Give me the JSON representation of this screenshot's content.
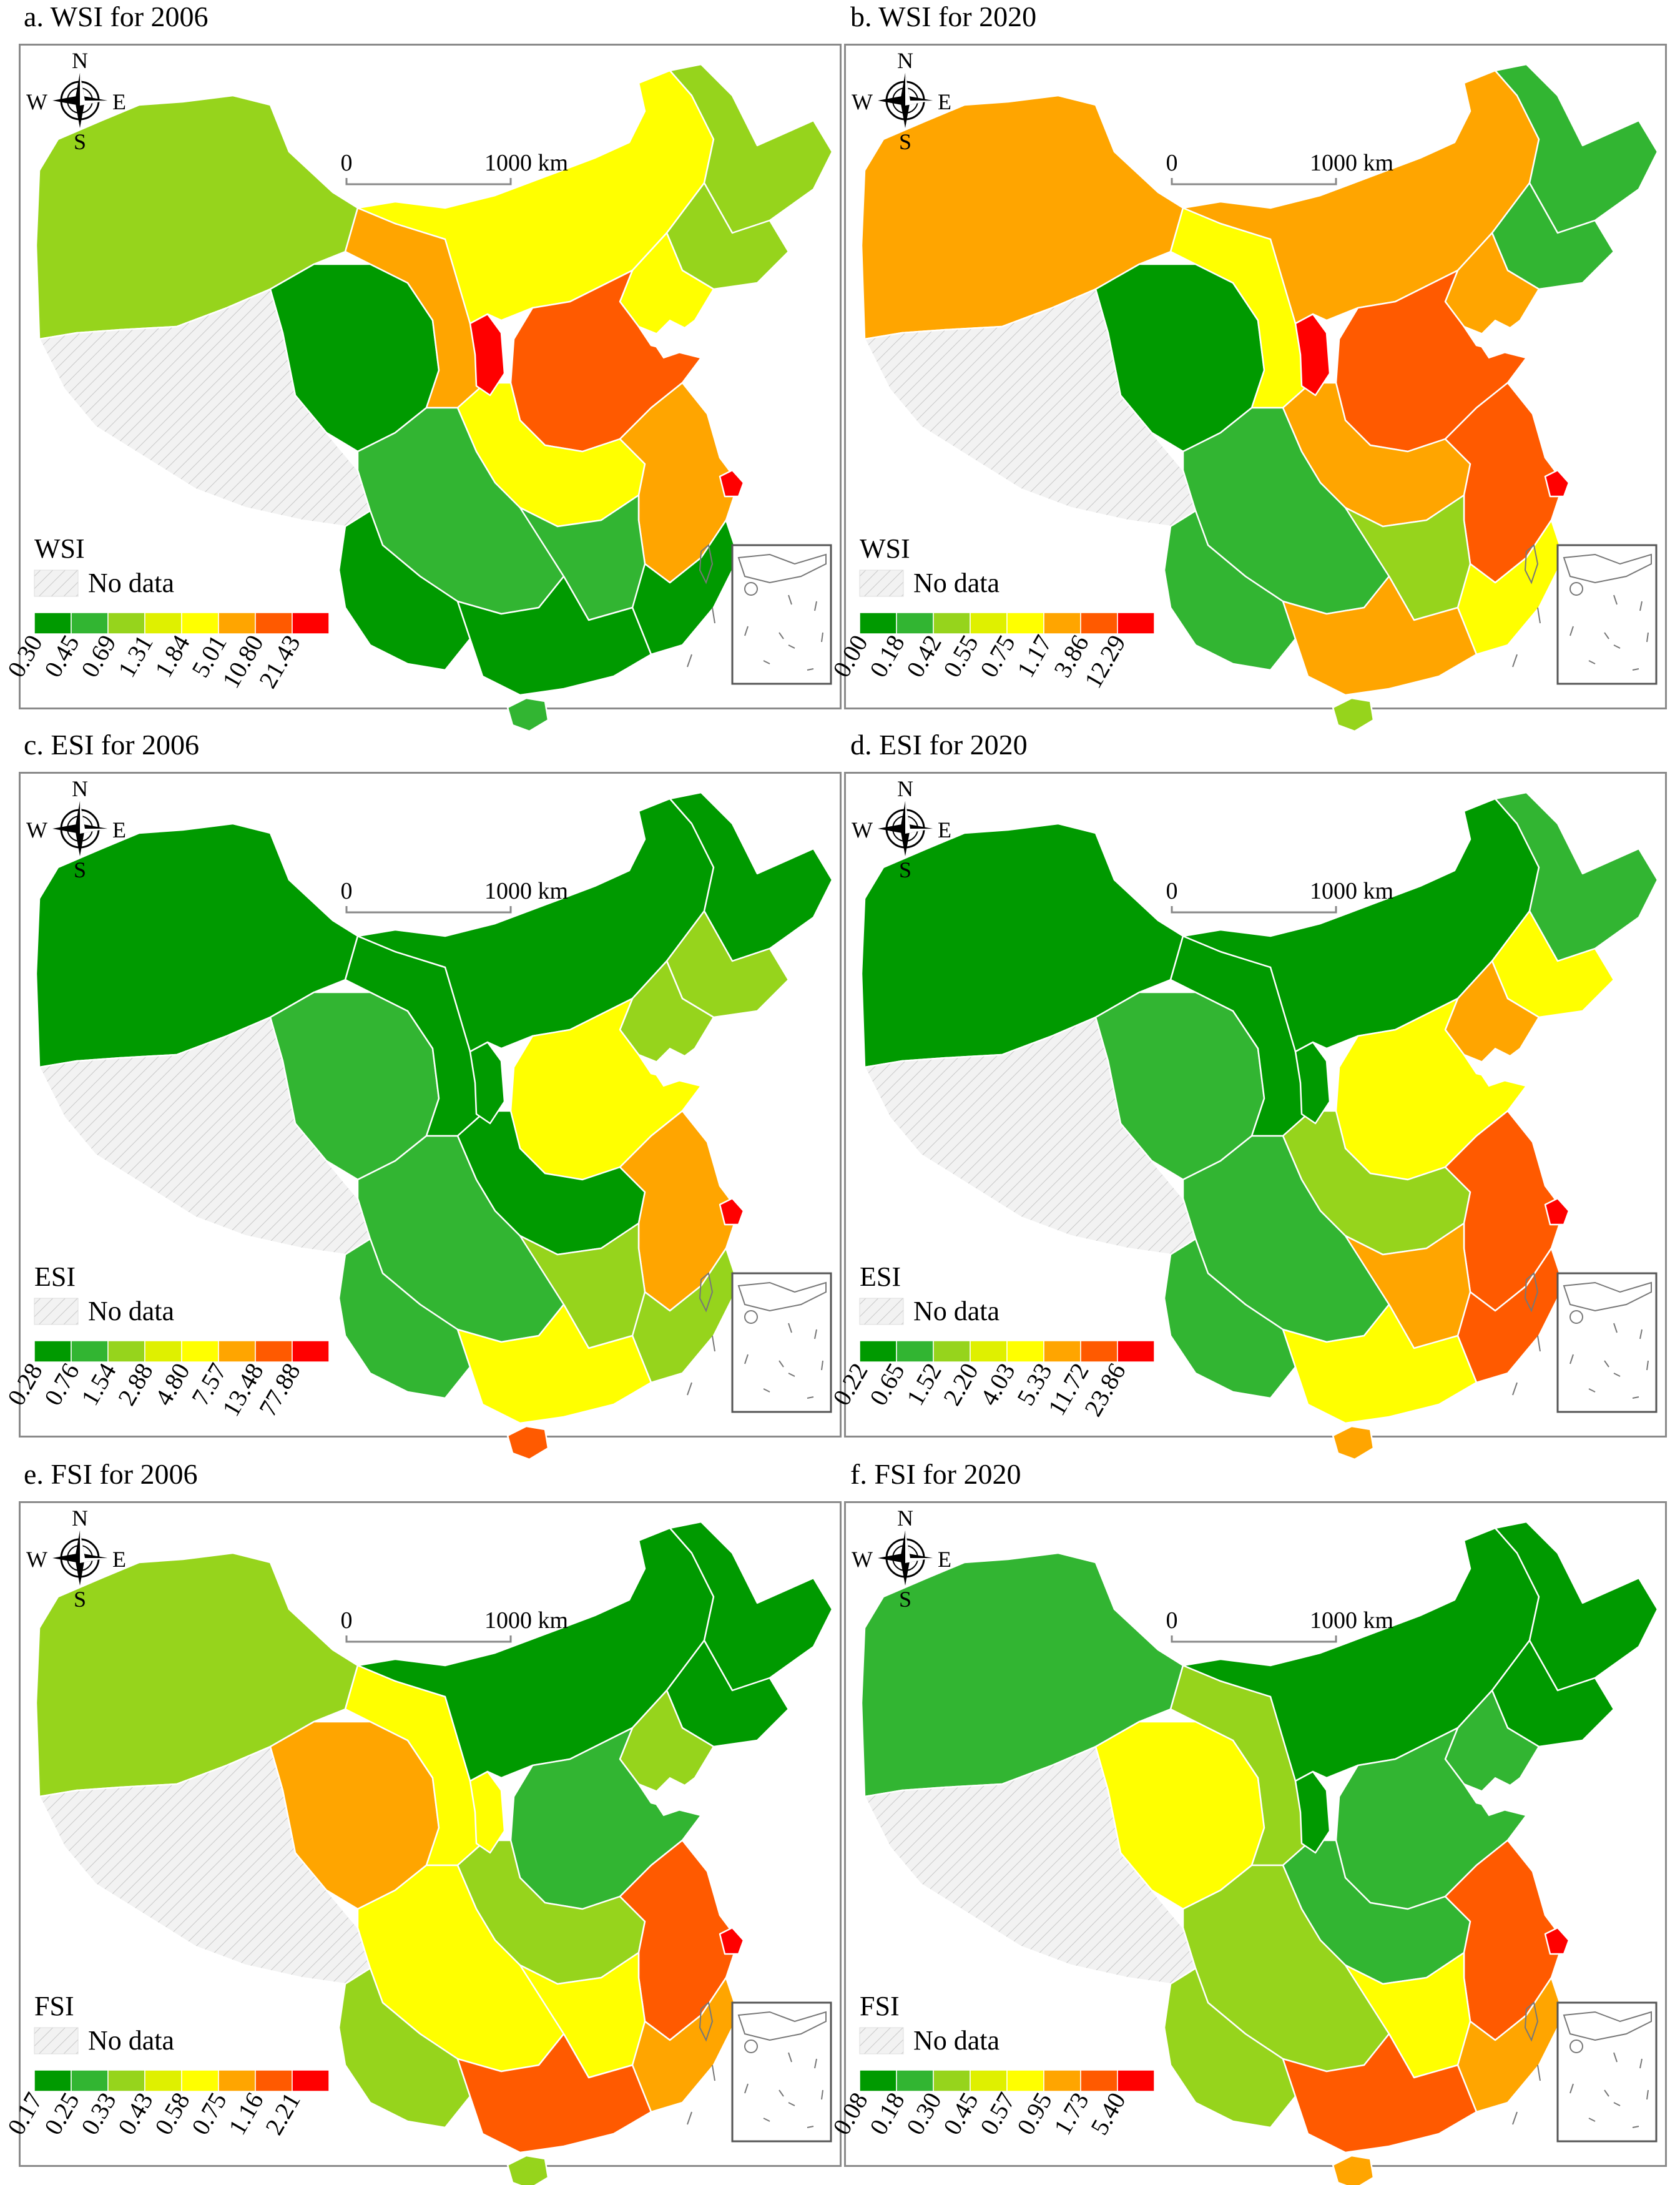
{
  "palette": [
    "#009a00",
    "#32b532",
    "#96d41c",
    "#dff000",
    "#ffff00",
    "#ffa500",
    "#ff5a00",
    "#ff0000"
  ],
  "no_data_color": "#f2f2f2",
  "compass": {
    "n": "N",
    "s": "S",
    "e": "E",
    "w": "W"
  },
  "scale_bar": {
    "start": "0",
    "end": "1000 km"
  },
  "panels": [
    {
      "title": "a. WSI for 2006",
      "legend_title": "WSI",
      "no_data_label": "No data",
      "breaks": [
        "0.30",
        "0.45",
        "0.69",
        "1.31",
        "1.84",
        "5.01",
        "10.80",
        "21.43"
      ],
      "regions": {
        "xinjiang": 2,
        "tibet": -1,
        "qinghai": 0,
        "gansu": 5,
        "ningxia": 7,
        "inner_mongolia": 4,
        "heilongjiang": 2,
        "jilin": 2,
        "liaoning": 4,
        "north_china": 6,
        "central_north": 4,
        "east_coast": 5,
        "southwest": 1,
        "yunnan": 0,
        "south_central": 1,
        "southeast": 0,
        "guangdong": 0,
        "hainan": 1,
        "shanghai": 7
      }
    },
    {
      "title": "b. WSI for 2020",
      "legend_title": "WSI",
      "no_data_label": "No data",
      "breaks": [
        "0.00",
        "0.18",
        "0.42",
        "0.55",
        "0.75",
        "1.17",
        "3.86",
        "12.29"
      ],
      "regions": {
        "xinjiang": 5,
        "tibet": -1,
        "qinghai": 0,
        "gansu": 4,
        "ningxia": 7,
        "inner_mongolia": 5,
        "heilongjiang": 1,
        "jilin": 1,
        "liaoning": 5,
        "north_china": 6,
        "central_north": 5,
        "east_coast": 6,
        "southwest": 1,
        "yunnan": 1,
        "south_central": 2,
        "southeast": 4,
        "guangdong": 5,
        "hainan": 2,
        "shanghai": 7
      }
    },
    {
      "title": "c. ESI for 2006",
      "legend_title": "ESI",
      "no_data_label": "No data",
      "breaks": [
        "0.28",
        "0.76",
        "1.54",
        "2.88",
        "4.80",
        "7.57",
        "13.48",
        "77.88"
      ],
      "regions": {
        "xinjiang": 0,
        "tibet": -1,
        "qinghai": 1,
        "gansu": 0,
        "ningxia": 0,
        "inner_mongolia": 0,
        "heilongjiang": 0,
        "jilin": 2,
        "liaoning": 2,
        "north_china": 4,
        "central_north": 0,
        "east_coast": 5,
        "southwest": 1,
        "yunnan": 1,
        "south_central": 2,
        "southeast": 2,
        "guangdong": 4,
        "hainan": 6,
        "shanghai": 7
      }
    },
    {
      "title": "d. ESI for 2020",
      "legend_title": "ESI",
      "no_data_label": "No data",
      "breaks": [
        "0.22",
        "0.65",
        "1.52",
        "2.20",
        "4.03",
        "5.33",
        "11.72",
        "23.86"
      ],
      "regions": {
        "xinjiang": 0,
        "tibet": -1,
        "qinghai": 1,
        "gansu": 0,
        "ningxia": 0,
        "inner_mongolia": 0,
        "heilongjiang": 1,
        "jilin": 4,
        "liaoning": 5,
        "north_china": 4,
        "central_north": 2,
        "east_coast": 6,
        "southwest": 1,
        "yunnan": 1,
        "south_central": 5,
        "southeast": 6,
        "guangdong": 4,
        "hainan": 5,
        "shanghai": 7
      }
    },
    {
      "title": "e. FSI for 2006",
      "legend_title": "FSI",
      "no_data_label": "No data",
      "breaks": [
        "0.17",
        "0.25",
        "0.33",
        "0.43",
        "0.58",
        "0.75",
        "1.16",
        "2.21"
      ],
      "regions": {
        "xinjiang": 2,
        "tibet": -1,
        "qinghai": 5,
        "gansu": 4,
        "ningxia": 4,
        "inner_mongolia": 0,
        "heilongjiang": 0,
        "jilin": 0,
        "liaoning": 2,
        "north_china": 1,
        "central_north": 2,
        "east_coast": 6,
        "southwest": 4,
        "yunnan": 2,
        "south_central": 4,
        "southeast": 5,
        "guangdong": 6,
        "hainan": 2,
        "shanghai": 7
      }
    },
    {
      "title": "f. FSI for 2020",
      "legend_title": "FSI",
      "no_data_label": "No data",
      "breaks": [
        "0.08",
        "0.18",
        "0.30",
        "0.45",
        "0.57",
        "0.95",
        "1.73",
        "5.40"
      ],
      "regions": {
        "xinjiang": 1,
        "tibet": -1,
        "qinghai": 4,
        "gansu": 2,
        "ningxia": 0,
        "inner_mongolia": 0,
        "heilongjiang": 0,
        "jilin": 0,
        "liaoning": 1,
        "north_china": 1,
        "central_north": 1,
        "east_coast": 6,
        "southwest": 2,
        "yunnan": 2,
        "south_central": 4,
        "southeast": 5,
        "guangdong": 6,
        "hainan": 5,
        "shanghai": 7
      }
    }
  ]
}
